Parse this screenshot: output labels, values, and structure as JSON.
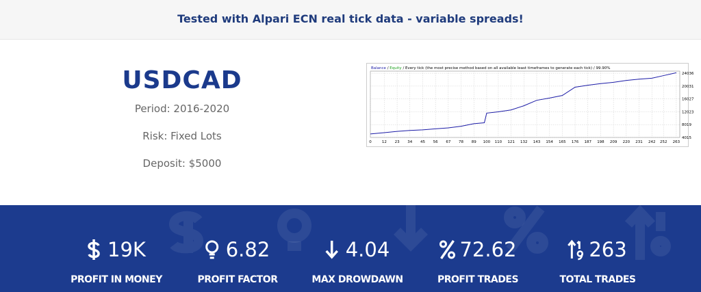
{
  "banner": "Tested with Alpari ECN real tick data - variable spreads!",
  "pair": {
    "title": "USDCAD",
    "period": "Period: 2016-2020",
    "risk": "Risk: Fixed Lots",
    "deposit": "Deposit: $5000"
  },
  "chart_data": {
    "type": "line",
    "header_separator": "/",
    "header_note": "/ Every tick (the most precise method based on all available least timeframes to generate each tick) / 99.90%",
    "equity_label": "Equity",
    "x": [
      0,
      12,
      23,
      34,
      45,
      56,
      67,
      78,
      89,
      98,
      100,
      110,
      121,
      132,
      143,
      154,
      165,
      176,
      187,
      198,
      209,
      220,
      231,
      242,
      252,
      263
    ],
    "series": [
      {
        "name": "Balance",
        "color": "#1a1aa6",
        "values": [
          5100,
          5500,
          5900,
          6200,
          6400,
          6700,
          7000,
          7500,
          8300,
          8600,
          11600,
          12000,
          12600,
          13900,
          15600,
          16300,
          17100,
          19700,
          20300,
          20800,
          21200,
          21800,
          22200,
          22500,
          23300,
          24200
        ]
      }
    ],
    "xlim": [
      0,
      266
    ],
    "ylim": [
      4015,
      24700
    ],
    "xticks": [
      0,
      12,
      23,
      34,
      45,
      56,
      67,
      78,
      89,
      100,
      110,
      121,
      132,
      143,
      154,
      165,
      176,
      187,
      198,
      209,
      220,
      231,
      242,
      252,
      263
    ],
    "yticks": [
      4015,
      8019,
      12023,
      16027,
      20031,
      24036
    ],
    "grid": true
  },
  "stats": [
    {
      "value": "19K",
      "label": "PROFIT IN MONEY"
    },
    {
      "value": "6.82",
      "label": "PROFIT FACTOR"
    },
    {
      "value": "4.04",
      "label": "MAX DROWDAWN"
    },
    {
      "value": "72.62",
      "label": "PROFIT TRADES"
    },
    {
      "value": "263",
      "label": "TOTAL TRADES"
    }
  ]
}
